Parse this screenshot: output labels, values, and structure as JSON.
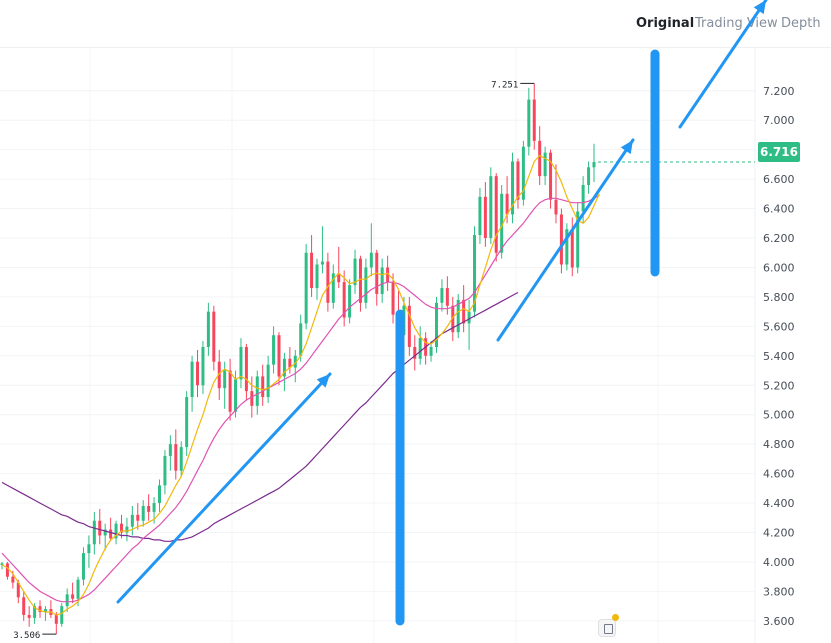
{
  "tabs": [
    {
      "label": "Original",
      "active": true
    },
    {
      "label": "Trading View",
      "active": false
    },
    {
      "label": "Depth",
      "active": false
    }
  ],
  "last_price": "6.716",
  "high_label": "7.251",
  "low_label": "3.506",
  "colors": {
    "up": "#2ebd85",
    "down": "#f6465d",
    "ma_short": "#f0b90b",
    "ma_mid": "#e052b3",
    "ma_long": "#7c2b8e",
    "annotation": "#2196f3"
  },
  "chart_data": {
    "type": "candlestick",
    "title": "",
    "ylim": [
      3.47,
      7.47
    ],
    "y_ticks": [
      "7.200",
      "7.000",
      "6.800",
      "6.600",
      "6.400",
      "6.200",
      "6.000",
      "5.800",
      "5.600",
      "5.400",
      "5.200",
      "5.000",
      "4.800",
      "4.600",
      "4.400",
      "4.200",
      "4.000",
      "3.800",
      "3.600"
    ],
    "grid": true,
    "candles": [
      [
        3.98,
        4.0,
        3.95,
        3.99
      ],
      [
        3.99,
        4.0,
        3.88,
        3.9
      ],
      [
        3.9,
        3.94,
        3.82,
        3.86
      ],
      [
        3.86,
        3.88,
        3.72,
        3.76
      ],
      [
        3.76,
        3.8,
        3.6,
        3.64
      ],
      [
        3.64,
        3.7,
        3.56,
        3.62
      ],
      [
        3.62,
        3.72,
        3.58,
        3.7
      ],
      [
        3.7,
        3.74,
        3.62,
        3.66
      ],
      [
        3.66,
        3.7,
        3.6,
        3.68
      ],
      [
        3.68,
        3.74,
        3.62,
        3.64
      ],
      [
        3.64,
        3.66,
        3.51,
        3.58
      ],
      [
        3.58,
        3.72,
        3.56,
        3.7
      ],
      [
        3.7,
        3.82,
        3.66,
        3.78
      ],
      [
        3.78,
        3.86,
        3.72,
        3.75
      ],
      [
        3.75,
        3.9,
        3.7,
        3.88
      ],
      [
        3.88,
        4.1,
        3.84,
        4.06
      ],
      [
        4.06,
        4.18,
        3.96,
        4.12
      ],
      [
        4.12,
        4.34,
        4.05,
        4.28
      ],
      [
        4.28,
        4.36,
        4.12,
        4.18
      ],
      [
        4.18,
        4.26,
        4.08,
        4.22
      ],
      [
        4.22,
        4.3,
        4.14,
        4.16
      ],
      [
        4.16,
        4.28,
        4.12,
        4.26
      ],
      [
        4.26,
        4.32,
        4.16,
        4.2
      ],
      [
        4.2,
        4.3,
        4.14,
        4.24
      ],
      [
        4.24,
        4.38,
        4.18,
        4.32
      ],
      [
        4.32,
        4.4,
        4.22,
        4.28
      ],
      [
        4.28,
        4.42,
        4.24,
        4.38
      ],
      [
        4.38,
        4.46,
        4.28,
        4.34
      ],
      [
        4.34,
        4.44,
        4.26,
        4.4
      ],
      [
        4.4,
        4.56,
        4.34,
        4.52
      ],
      [
        4.52,
        4.76,
        4.46,
        4.72
      ],
      [
        4.72,
        4.86,
        4.62,
        4.8
      ],
      [
        4.8,
        4.9,
        4.56,
        4.62
      ],
      [
        4.62,
        4.82,
        4.58,
        4.78
      ],
      [
        4.78,
        5.16,
        4.72,
        5.12
      ],
      [
        5.12,
        5.4,
        5.02,
        5.36
      ],
      [
        5.36,
        5.44,
        5.12,
        5.2
      ],
      [
        5.2,
        5.5,
        5.14,
        5.46
      ],
      [
        5.46,
        5.76,
        5.4,
        5.7
      ],
      [
        5.7,
        5.74,
        5.3,
        5.36
      ],
      [
        5.36,
        5.44,
        5.1,
        5.18
      ],
      [
        5.18,
        5.36,
        5.04,
        5.3
      ],
      [
        5.3,
        5.38,
        4.96,
        5.02
      ],
      [
        5.02,
        5.3,
        4.98,
        5.24
      ],
      [
        5.24,
        5.52,
        5.18,
        5.46
      ],
      [
        5.46,
        5.48,
        5.1,
        5.16
      ],
      [
        5.16,
        5.26,
        4.98,
        5.06
      ],
      [
        5.06,
        5.3,
        5.0,
        5.26
      ],
      [
        5.26,
        5.34,
        5.06,
        5.12
      ],
      [
        5.12,
        5.4,
        5.08,
        5.34
      ],
      [
        5.34,
        5.6,
        5.28,
        5.54
      ],
      [
        5.54,
        5.56,
        5.2,
        5.26
      ],
      [
        5.26,
        5.42,
        5.16,
        5.38
      ],
      [
        5.38,
        5.46,
        5.28,
        5.32
      ],
      [
        5.32,
        5.44,
        5.22,
        5.4
      ],
      [
        5.4,
        5.68,
        5.36,
        5.62
      ],
      [
        5.62,
        6.16,
        5.58,
        6.1
      ],
      [
        6.1,
        6.22,
        5.8,
        5.86
      ],
      [
        5.86,
        6.06,
        5.78,
        6.02
      ],
      [
        6.02,
        6.28,
        5.96,
        6.04
      ],
      [
        6.04,
        6.1,
        5.7,
        5.76
      ],
      [
        5.76,
        6.02,
        5.72,
        5.96
      ],
      [
        5.96,
        6.14,
        5.86,
        5.9
      ],
      [
        5.9,
        5.98,
        5.6,
        5.66
      ],
      [
        5.66,
        5.92,
        5.62,
        5.88
      ],
      [
        5.88,
        6.12,
        5.82,
        6.06
      ],
      [
        6.06,
        6.08,
        5.7,
        5.76
      ],
      [
        5.76,
        6.06,
        5.72,
        6.0
      ],
      [
        6.0,
        6.3,
        5.94,
        6.1
      ],
      [
        6.1,
        6.12,
        5.74,
        5.82
      ],
      [
        5.82,
        6.06,
        5.76,
        6.0
      ],
      [
        6.0,
        6.08,
        5.84,
        5.9
      ],
      [
        5.9,
        5.96,
        5.62,
        5.68
      ],
      [
        5.68,
        5.84,
        5.48,
        5.54
      ],
      [
        5.54,
        5.8,
        5.5,
        5.74
      ],
      [
        5.74,
        5.8,
        5.4,
        5.46
      ],
      [
        5.46,
        5.54,
        5.3,
        5.38
      ],
      [
        5.38,
        5.6,
        5.34,
        5.52
      ],
      [
        5.52,
        5.56,
        5.34,
        5.4
      ],
      [
        5.4,
        5.5,
        5.36,
        5.46
      ],
      [
        5.46,
        5.8,
        5.42,
        5.76
      ],
      [
        5.76,
        5.92,
        5.7,
        5.86
      ],
      [
        5.86,
        5.94,
        5.68,
        5.74
      ],
      [
        5.74,
        5.8,
        5.5,
        5.56
      ],
      [
        5.56,
        5.82,
        5.52,
        5.78
      ],
      [
        5.78,
        5.88,
        5.56,
        5.62
      ],
      [
        5.62,
        5.78,
        5.44,
        5.7
      ],
      [
        5.7,
        6.28,
        5.66,
        6.22
      ],
      [
        6.22,
        6.54,
        6.16,
        6.48
      ],
      [
        6.48,
        6.58,
        6.14,
        6.2
      ],
      [
        6.2,
        6.68,
        6.16,
        6.62
      ],
      [
        6.62,
        6.64,
        6.04,
        6.1
      ],
      [
        6.1,
        6.56,
        6.06,
        6.5
      ],
      [
        6.5,
        6.62,
        6.3,
        6.36
      ],
      [
        6.36,
        6.78,
        6.3,
        6.72
      ],
      [
        6.72,
        6.74,
        6.4,
        6.46
      ],
      [
        6.46,
        6.86,
        6.42,
        6.82
      ],
      [
        6.82,
        7.22,
        6.76,
        7.14
      ],
      [
        7.14,
        7.25,
        6.8,
        6.86
      ],
      [
        6.86,
        6.96,
        6.56,
        6.62
      ],
      [
        6.62,
        6.82,
        6.56,
        6.78
      ],
      [
        6.78,
        6.8,
        6.4,
        6.46
      ],
      [
        6.46,
        6.7,
        6.3,
        6.36
      ],
      [
        6.36,
        6.4,
        5.96,
        6.02
      ],
      [
        6.02,
        6.3,
        5.98,
        6.26
      ],
      [
        6.26,
        6.34,
        5.94,
        6.0
      ],
      [
        6.0,
        6.44,
        5.96,
        6.38
      ],
      [
        6.38,
        6.62,
        6.3,
        6.56
      ],
      [
        6.56,
        6.72,
        6.5,
        6.68
      ],
      [
        6.68,
        6.84,
        6.58,
        6.716
      ]
    ],
    "ma_short": [
      3.98,
      3.96,
      3.92,
      3.86,
      3.8,
      3.74,
      3.69,
      3.67,
      3.66,
      3.66,
      3.64,
      3.65,
      3.68,
      3.7,
      3.73,
      3.78,
      3.85,
      3.94,
      4.02,
      4.09,
      4.15,
      4.18,
      4.21,
      4.21,
      4.22,
      4.24,
      4.25,
      4.27,
      4.29,
      4.33,
      4.38,
      4.45,
      4.52,
      4.58,
      4.68,
      4.79,
      4.9,
      5.0,
      5.12,
      5.22,
      5.28,
      5.31,
      5.29,
      5.24,
      5.26,
      5.24,
      5.2,
      5.18,
      5.17,
      5.18,
      5.21,
      5.24,
      5.29,
      5.32,
      5.35,
      5.4,
      5.48,
      5.59,
      5.7,
      5.81,
      5.87,
      5.92,
      5.96,
      5.93,
      5.89,
      5.9,
      5.92,
      5.92,
      5.95,
      5.96,
      5.95,
      5.96,
      5.92,
      5.85,
      5.76,
      5.68,
      5.59,
      5.53,
      5.49,
      5.48,
      5.51,
      5.55,
      5.6,
      5.66,
      5.7,
      5.72,
      5.7,
      5.76,
      5.88,
      6.0,
      6.12,
      6.22,
      6.28,
      6.36,
      6.42,
      6.48,
      6.52,
      6.62,
      6.72,
      6.76,
      6.74,
      6.72,
      6.66,
      6.58,
      6.48,
      6.4,
      6.32,
      6.3,
      6.34,
      6.42,
      6.5
    ],
    "ma_mid": [
      4.06,
      4.02,
      3.98,
      3.94,
      3.9,
      3.86,
      3.83,
      3.8,
      3.78,
      3.76,
      3.74,
      3.73,
      3.73,
      3.73,
      3.74,
      3.76,
      3.78,
      3.81,
      3.85,
      3.89,
      3.93,
      3.97,
      4.01,
      4.05,
      4.09,
      4.12,
      4.16,
      4.19,
      4.22,
      4.25,
      4.29,
      4.33,
      4.37,
      4.42,
      4.48,
      4.55,
      4.62,
      4.69,
      4.77,
      4.84,
      4.9,
      4.95,
      4.99,
      5.03,
      5.07,
      5.1,
      5.12,
      5.14,
      5.16,
      5.18,
      5.2,
      5.22,
      5.24,
      5.26,
      5.28,
      5.31,
      5.35,
      5.4,
      5.45,
      5.5,
      5.55,
      5.6,
      5.65,
      5.69,
      5.73,
      5.76,
      5.79,
      5.82,
      5.85,
      5.87,
      5.89,
      5.9,
      5.9,
      5.89,
      5.87,
      5.84,
      5.81,
      5.78,
      5.75,
      5.73,
      5.72,
      5.72,
      5.72,
      5.73,
      5.75,
      5.77,
      5.79,
      5.83,
      5.89,
      5.95,
      6.01,
      6.07,
      6.13,
      6.18,
      6.22,
      6.26,
      6.3,
      6.35,
      6.4,
      6.44,
      6.46,
      6.47,
      6.47,
      6.46,
      6.45,
      6.44,
      6.44,
      6.44,
      6.45,
      6.47,
      6.49
    ],
    "ma_long": [
      4.54,
      4.52,
      4.5,
      4.48,
      4.46,
      4.44,
      4.42,
      4.4,
      4.38,
      4.36,
      4.34,
      4.32,
      4.31,
      4.29,
      4.27,
      4.26,
      4.24,
      4.23,
      4.22,
      4.21,
      4.2,
      4.19,
      4.18,
      4.18,
      4.17,
      4.17,
      4.16,
      4.16,
      4.15,
      4.15,
      4.14,
      4.14,
      4.15,
      4.15,
      4.16,
      4.17,
      4.19,
      4.21,
      4.23,
      4.26,
      4.28,
      4.3,
      4.32,
      4.34,
      4.36,
      4.38,
      4.4,
      4.42,
      4.44,
      4.46,
      4.48,
      4.5,
      4.53,
      4.56,
      4.59,
      4.62,
      4.65,
      4.69,
      4.73,
      4.77,
      4.81,
      4.85,
      4.89,
      4.93,
      4.97,
      5.01,
      5.05,
      5.08,
      5.12,
      5.16,
      5.2,
      5.24,
      5.28,
      5.31,
      5.34,
      5.37,
      5.4,
      5.43,
      5.46,
      5.49,
      5.52,
      5.55,
      5.57,
      5.59,
      5.61,
      5.63,
      5.65,
      5.67,
      5.69,
      5.71,
      5.73,
      5.75,
      5.77,
      5.79,
      5.81,
      5.83
    ]
  }
}
